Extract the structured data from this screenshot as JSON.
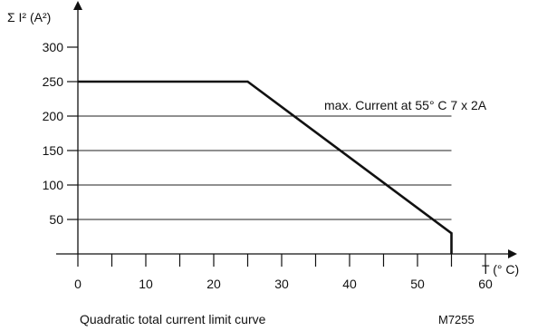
{
  "chart_data": {
    "type": "line",
    "ylabel": "Σ I² (A²)",
    "xlabel": "T (° C)",
    "xlim": [
      0,
      60
    ],
    "ylim": [
      0,
      320
    ],
    "x_ticks": [
      0,
      10,
      20,
      30,
      40,
      50,
      60
    ],
    "x_minor_ticks": [
      5,
      15,
      25,
      35,
      45,
      55
    ],
    "y_ticks": [
      50,
      100,
      150,
      200,
      250,
      300
    ],
    "gridlines_y": [
      50,
      100,
      150,
      200,
      250
    ],
    "grid": "horizontal",
    "series": [
      {
        "x": [
          0,
          25,
          55,
          55
        ],
        "y": [
          250,
          250,
          30,
          0
        ]
      }
    ],
    "annotation": "max. Current at 55° C 7 x 2A",
    "caption": "Quadratic total current limit curve",
    "figure_code": "M7255"
  }
}
